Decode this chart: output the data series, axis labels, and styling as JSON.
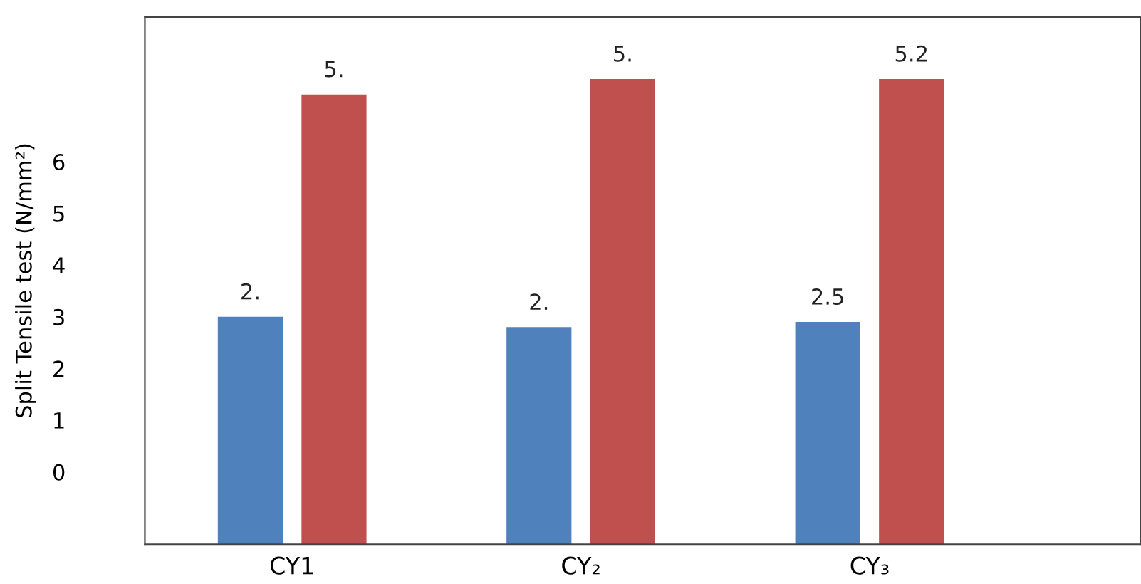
{
  "chart_data": {
    "type": "bar",
    "ylabel": "Split Tensile test (N/mm²)",
    "categories": [
      "CY1",
      "CY₂",
      "CY₃"
    ],
    "ylim": [
      -1.4,
      8.8
    ],
    "yticks": [
      0,
      1,
      2,
      3,
      4,
      5,
      6
    ],
    "series": [
      {
        "color": "#4f81bd",
        "base": [
          -1.4,
          -1.4,
          -1.4
        ],
        "values": [
          4.4,
          4.2,
          4.3
        ]
      },
      {
        "color": "#c0504d",
        "base": [
          -1.4,
          -1.4,
          -1.4
        ],
        "values": [
          8.7,
          9.0,
          9.0
        ]
      }
    ],
    "annotations": [
      "2.",
      "5.",
      "2.",
      "5.",
      "2.5",
      "5.2"
    ],
    "grid": false,
    "legend": false
  }
}
